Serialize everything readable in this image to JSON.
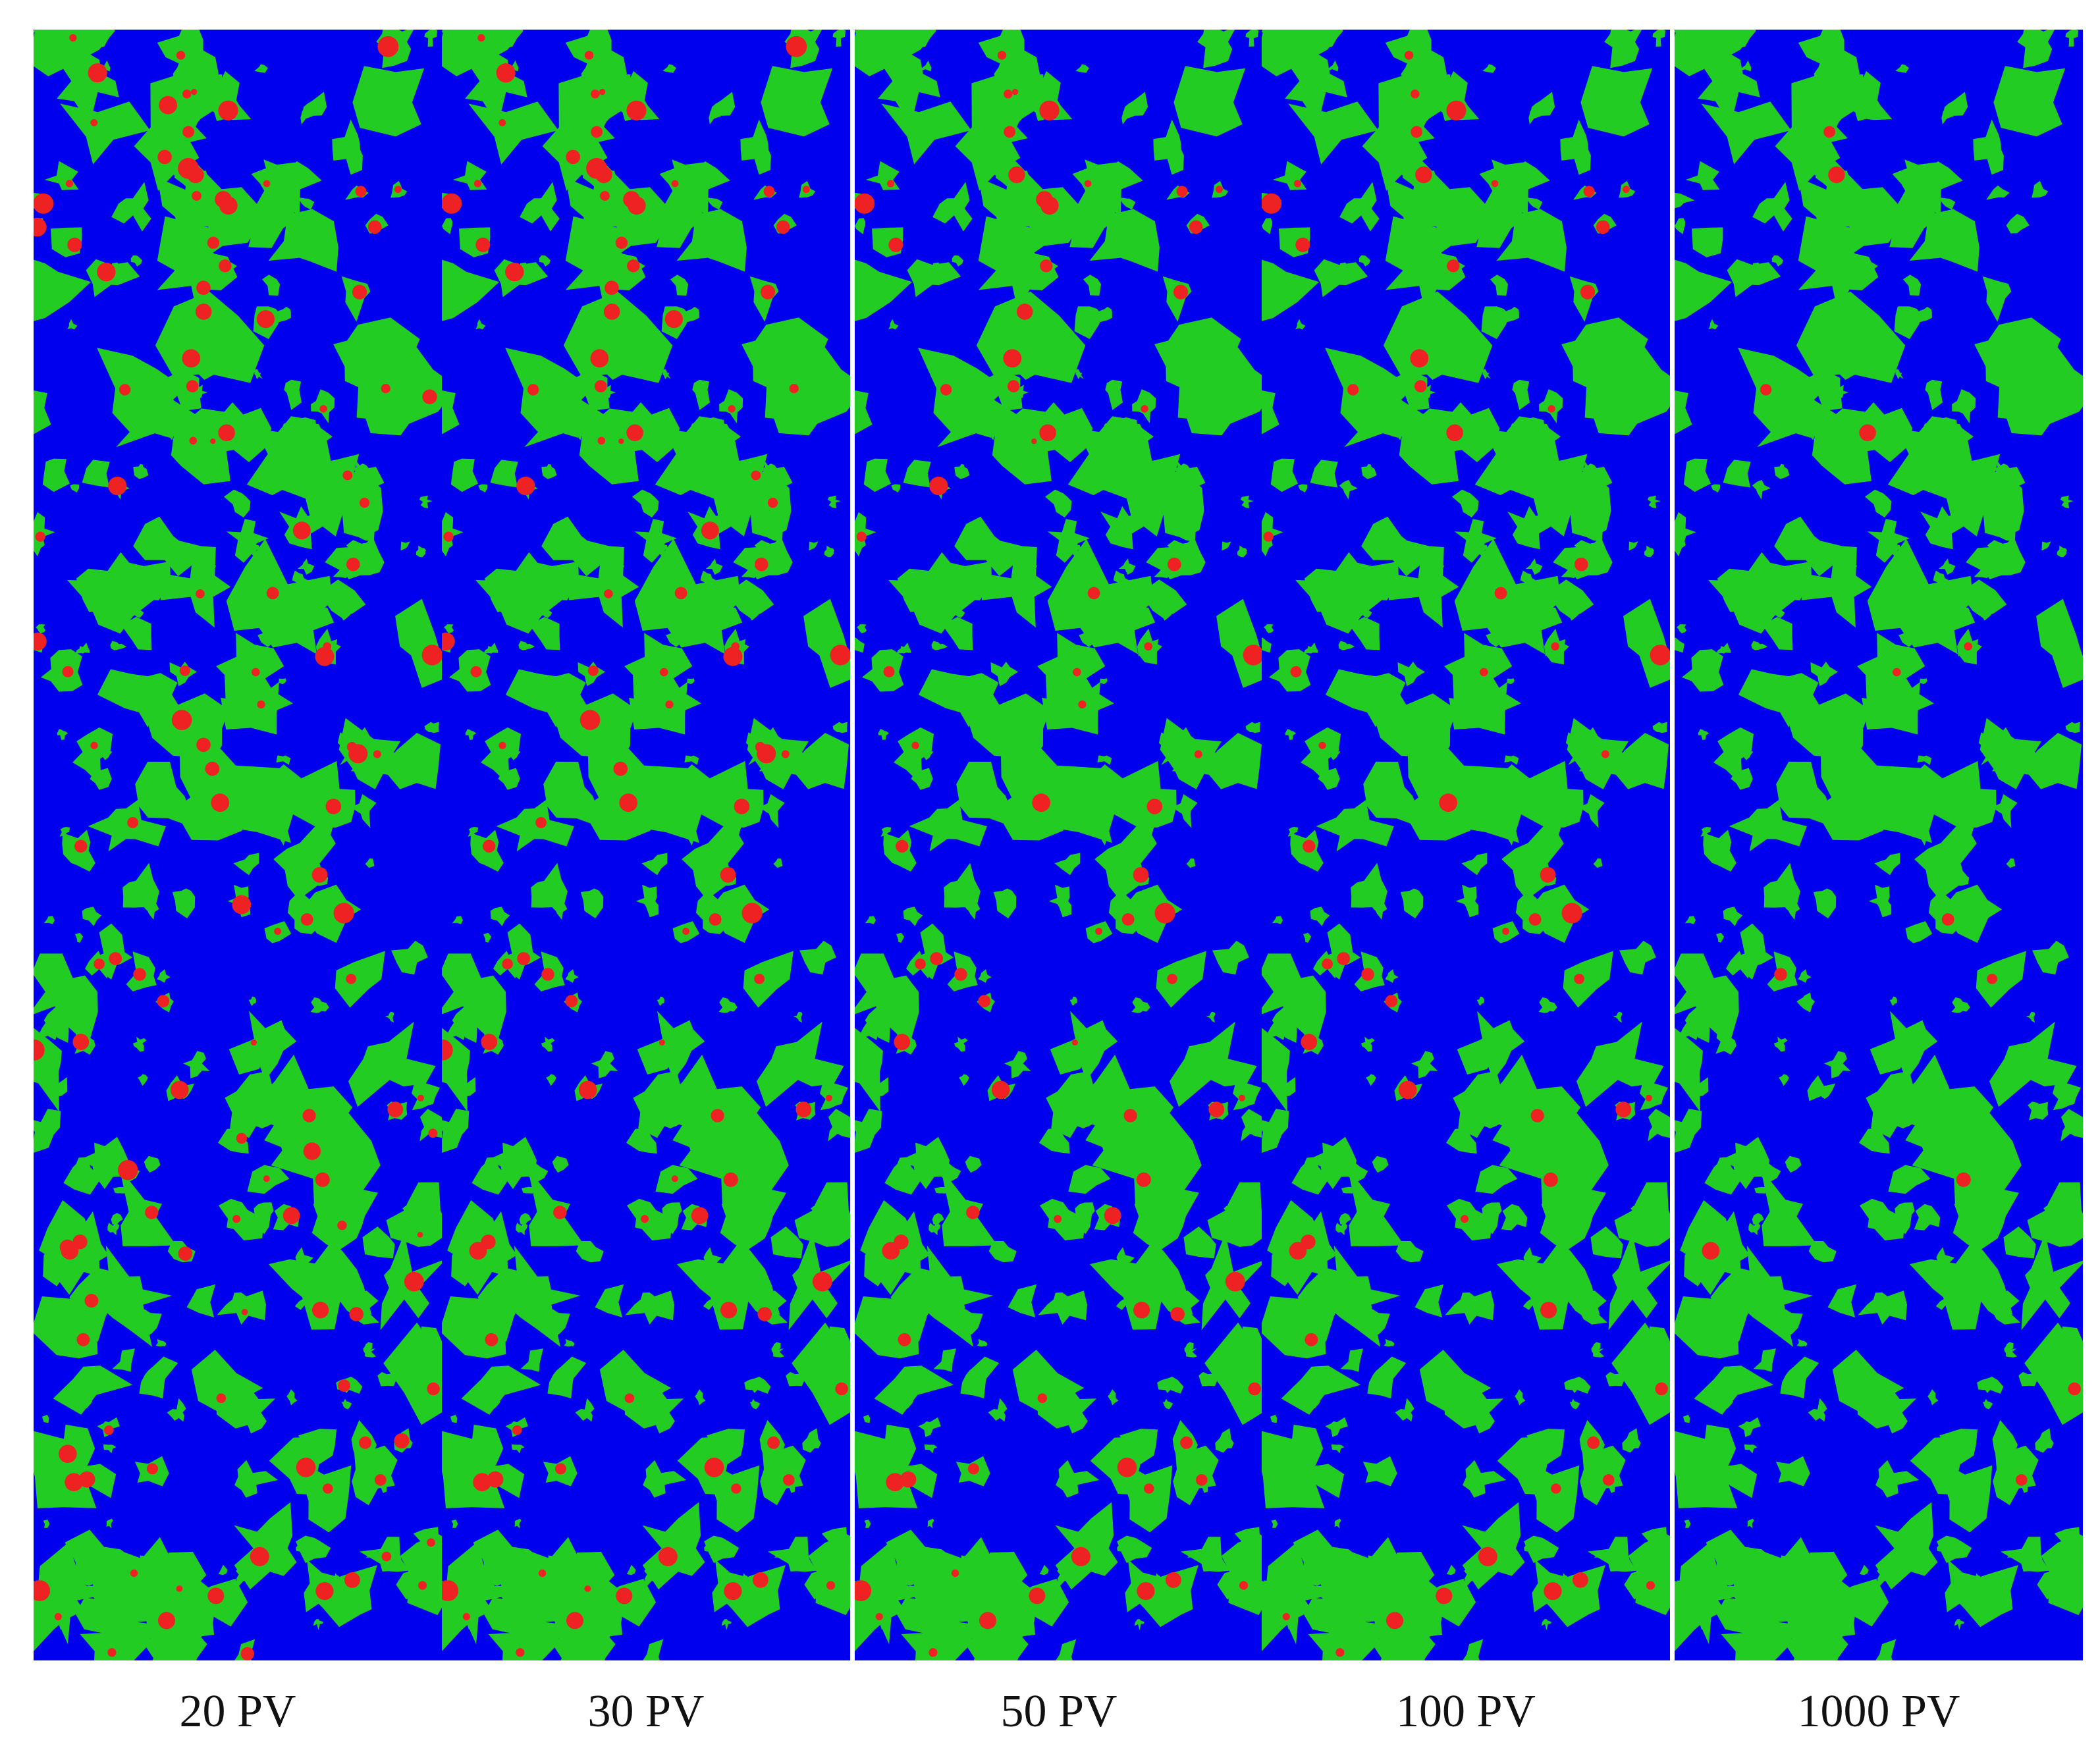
{
  "panels": [
    {
      "label": "20 PV"
    },
    {
      "label": "30 PV"
    },
    {
      "label": "50 PV"
    },
    {
      "label": "100 PV"
    },
    {
      "label": "1000 PV"
    }
  ]
}
